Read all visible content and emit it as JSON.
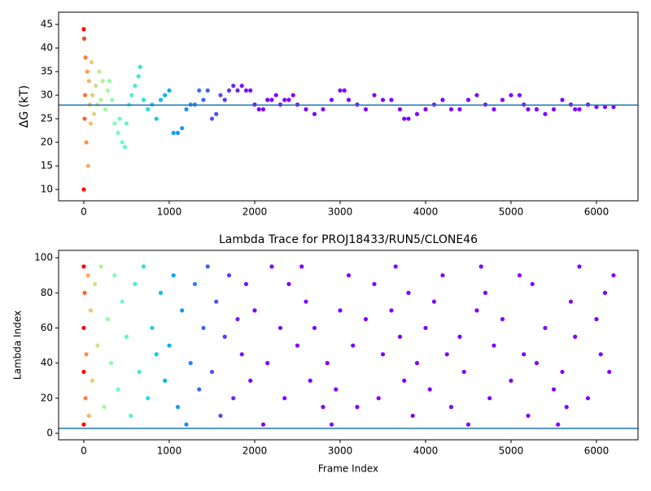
{
  "chart_data": [
    {
      "type": "scatter",
      "ylabel": "ΔG (kT)",
      "x": [
        0,
        0,
        5,
        10,
        15,
        20,
        30,
        40,
        50,
        60,
        70,
        80,
        90,
        100,
        120,
        140,
        160,
        180,
        200,
        220,
        250,
        280,
        300,
        330,
        360,
        400,
        420,
        450,
        480,
        500,
        530,
        560,
        600,
        640,
        660,
        700,
        750,
        800,
        850,
        900,
        950,
        1000,
        1050,
        1100,
        1150,
        1200,
        1250,
        1300,
        1350,
        1400,
        1450,
        1500,
        1550,
        1600,
        1650,
        1700,
        1750,
        1800,
        1850,
        1900,
        1950,
        2000,
        2050,
        2100,
        2150,
        2200,
        2250,
        2300,
        2350,
        2400,
        2450,
        2500,
        2600,
        2700,
        2800,
        2900,
        3000,
        3050,
        3100,
        3200,
        3300,
        3400,
        3500,
        3600,
        3700,
        3750,
        3800,
        3900,
        4000,
        4100,
        4200,
        4300,
        4400,
        4500,
        4600,
        4700,
        4800,
        4900,
        5000,
        5100,
        5150,
        5200,
        5300,
        5400,
        5500,
        5600,
        5700,
        5750,
        5800,
        5900,
        6000,
        6100,
        6200
      ],
      "values": [
        10,
        44,
        42,
        25,
        30,
        38,
        20,
        35,
        15,
        33,
        28,
        24,
        37,
        30,
        26,
        32,
        28,
        35,
        29,
        33,
        27,
        31,
        33,
        29,
        24,
        22,
        25,
        20,
        19,
        24,
        28,
        30,
        32,
        34,
        36,
        29,
        27,
        28,
        25,
        29,
        30,
        31,
        22,
        22,
        23,
        27,
        28,
        28,
        31,
        29,
        31,
        25,
        26,
        30,
        29,
        31,
        32,
        31,
        32,
        31,
        31,
        28,
        27,
        27,
        29,
        29,
        30,
        28,
        29,
        29,
        30,
        28,
        27,
        26,
        27,
        29,
        31,
        31,
        29,
        28,
        27,
        30,
        29,
        29,
        27,
        25,
        25,
        26,
        27,
        28,
        29,
        27,
        27,
        29,
        30,
        28,
        27,
        29,
        30,
        30,
        28,
        27,
        27,
        26,
        27,
        29,
        28,
        27,
        27,
        28,
        27.5,
        27.5,
        27.5
      ],
      "colormap": "rainbow",
      "hline": 27.9,
      "hline_color": "#1f77b4",
      "xlim": [
        -295,
        6486
      ],
      "xticks": [
        0,
        1000,
        2000,
        3000,
        4000,
        5000,
        6000
      ],
      "ylim": [
        7.6,
        47.6
      ],
      "yticks": [
        10,
        15,
        20,
        25,
        30,
        35,
        40,
        45
      ]
    },
    {
      "type": "scatter",
      "title": "Lambda Trace for PROJ18433/RUN5/CLONE46",
      "xlabel": "Frame Index",
      "ylabel": "Lambda Index",
      "x": [
        0,
        0,
        0,
        0,
        10,
        20,
        30,
        50,
        60,
        80,
        100,
        130,
        160,
        200,
        240,
        280,
        320,
        360,
        400,
        450,
        500,
        550,
        600,
        650,
        700,
        750,
        800,
        850,
        900,
        950,
        1000,
        1050,
        1100,
        1150,
        1200,
        1250,
        1300,
        1350,
        1400,
        1450,
        1500,
        1550,
        1600,
        1650,
        1700,
        1750,
        1800,
        1850,
        1900,
        1950,
        2000,
        2100,
        2150,
        2200,
        2300,
        2350,
        2400,
        2500,
        2550,
        2600,
        2650,
        2700,
        2800,
        2850,
        2900,
        2950,
        3000,
        3100,
        3150,
        3200,
        3300,
        3400,
        3450,
        3500,
        3600,
        3650,
        3700,
        3750,
        3800,
        3850,
        3900,
        4000,
        4050,
        4100,
        4200,
        4250,
        4300,
        4400,
        4450,
        4500,
        4600,
        4650,
        4700,
        4750,
        4800,
        4900,
        5000,
        5100,
        5150,
        5200,
        5250,
        5300,
        5400,
        5500,
        5550,
        5600,
        5650,
        5700,
        5750,
        5800,
        5900,
        6000,
        6050,
        6100,
        6150,
        6200
      ],
      "values": [
        95,
        35,
        60,
        5,
        80,
        20,
        45,
        90,
        10,
        70,
        30,
        85,
        50,
        95,
        15,
        65,
        40,
        90,
        25,
        75,
        55,
        10,
        85,
        35,
        95,
        20,
        60,
        45,
        80,
        30,
        50,
        90,
        15,
        70,
        5,
        40,
        85,
        25,
        60,
        95,
        35,
        75,
        10,
        55,
        90,
        20,
        65,
        45,
        85,
        30,
        70,
        5,
        40,
        95,
        60,
        20,
        85,
        50,
        95,
        75,
        30,
        60,
        15,
        40,
        5,
        25,
        70,
        90,
        50,
        15,
        65,
        85,
        20,
        45,
        70,
        95,
        55,
        30,
        80,
        10,
        40,
        60,
        25,
        75,
        90,
        45,
        15,
        55,
        35,
        5,
        70,
        95,
        80,
        20,
        50,
        65,
        30,
        90,
        45,
        10,
        85,
        40,
        60,
        25,
        5,
        35,
        15,
        75,
        55,
        95,
        20,
        65,
        45,
        80,
        35,
        90
      ],
      "colormap": "rainbow",
      "hline": 2.8,
      "hline_color": "#1f77b4",
      "xlim": [
        -295,
        6486
      ],
      "xticks": [
        0,
        1000,
        2000,
        3000,
        4000,
        5000,
        6000
      ],
      "ylim": [
        -3.7,
        104.2
      ],
      "yticks": [
        0,
        20,
        40,
        60,
        80,
        100
      ]
    }
  ]
}
